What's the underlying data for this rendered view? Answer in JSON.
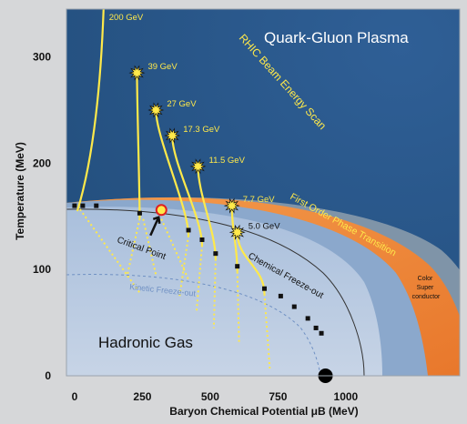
{
  "chart_data": {
    "type": "diagram",
    "xlabel": "Baryon Chemical Potential μB (MeV)",
    "ylabel": "Temperature (MeV)",
    "x_ticks": [
      "0",
      "250",
      "500",
      "750",
      "1000"
    ],
    "y_ticks": [
      "0",
      "100",
      "200",
      "300"
    ],
    "xlim": [
      -30,
      1420
    ],
    "ylim": [
      0,
      345
    ],
    "regions": {
      "qgp": "Quark-Gluon Plasma",
      "hadronic": "Hadronic Gas",
      "color_sc": [
        "Color",
        "Super",
        "conductor"
      ]
    },
    "annotations": {
      "beam_scan": "RHIC Beam Energy Scan",
      "first_order": "First Order Phase Transition",
      "critical_point": "Critical Point",
      "chem_freeze": "Chemical Freeze-out",
      "kinetic_freeze": "Kinetic Freeze-out"
    },
    "beam_energies": [
      {
        "label": "200 GeV",
        "x": 80,
        "y": 340
      },
      {
        "label": "39 GeV",
        "x": 230,
        "y": 285
      },
      {
        "label": "27 GeV",
        "x": 300,
        "y": 250
      },
      {
        "label": "17.3 GeV",
        "x": 360,
        "y": 226
      },
      {
        "label": "11.5 GeV",
        "x": 455,
        "y": 197
      },
      {
        "label": "7.7 GeV",
        "x": 580,
        "y": 160
      },
      {
        "label": "5.0 GeV",
        "x": 600,
        "y": 135
      }
    ],
    "critical_point": {
      "x": 320,
      "y": 156
    },
    "nuclear_matter_point": {
      "x": 925,
      "y": 0
    },
    "chemical_freezeout_points": [
      {
        "x": 0,
        "y": 160
      },
      {
        "x": 30,
        "y": 160
      },
      {
        "x": 80,
        "y": 160
      },
      {
        "x": 240,
        "y": 153
      },
      {
        "x": 420,
        "y": 137
      },
      {
        "x": 470,
        "y": 128
      },
      {
        "x": 520,
        "y": 115
      },
      {
        "x": 600,
        "y": 103
      },
      {
        "x": 700,
        "y": 82
      },
      {
        "x": 760,
        "y": 75
      },
      {
        "x": 810,
        "y": 65
      },
      {
        "x": 860,
        "y": 54
      },
      {
        "x": 890,
        "y": 45
      },
      {
        "x": 910,
        "y": 40
      }
    ],
    "colors": {
      "qgp": "#2e5d93",
      "hadronic": "#9cb4d4",
      "band": "#f08a3c",
      "trajectory": "#ffe94a",
      "color_sc": "#7f94a8"
    }
  }
}
